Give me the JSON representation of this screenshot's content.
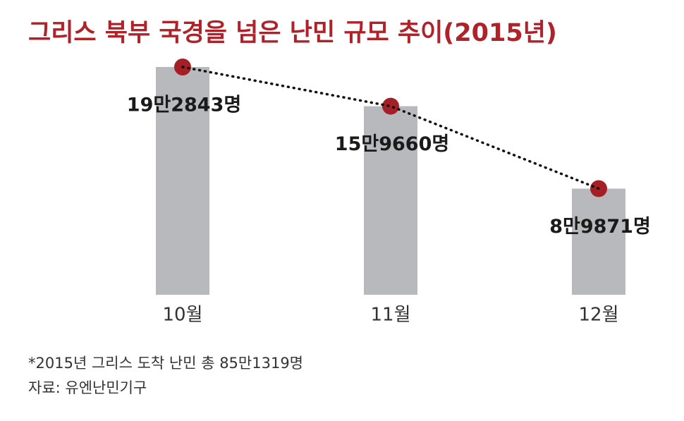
{
  "chart_data": {
    "type": "bar",
    "title": "그리스 북부 국경을 넘은 난민 규모 추이(2015년)",
    "categories": [
      "10월",
      "11월",
      "12월"
    ],
    "values": [
      192843,
      159660,
      89871
    ],
    "value_labels": [
      "19만2843명",
      "15만9660명",
      "8만9871명"
    ],
    "color": "#b8b9bd",
    "marker_color": "#a51f26",
    "line_style": "dotted",
    "note": "*2015년 그리스 도착 난민 총 85만1319명",
    "source": "자료: 유엔난민기구"
  }
}
